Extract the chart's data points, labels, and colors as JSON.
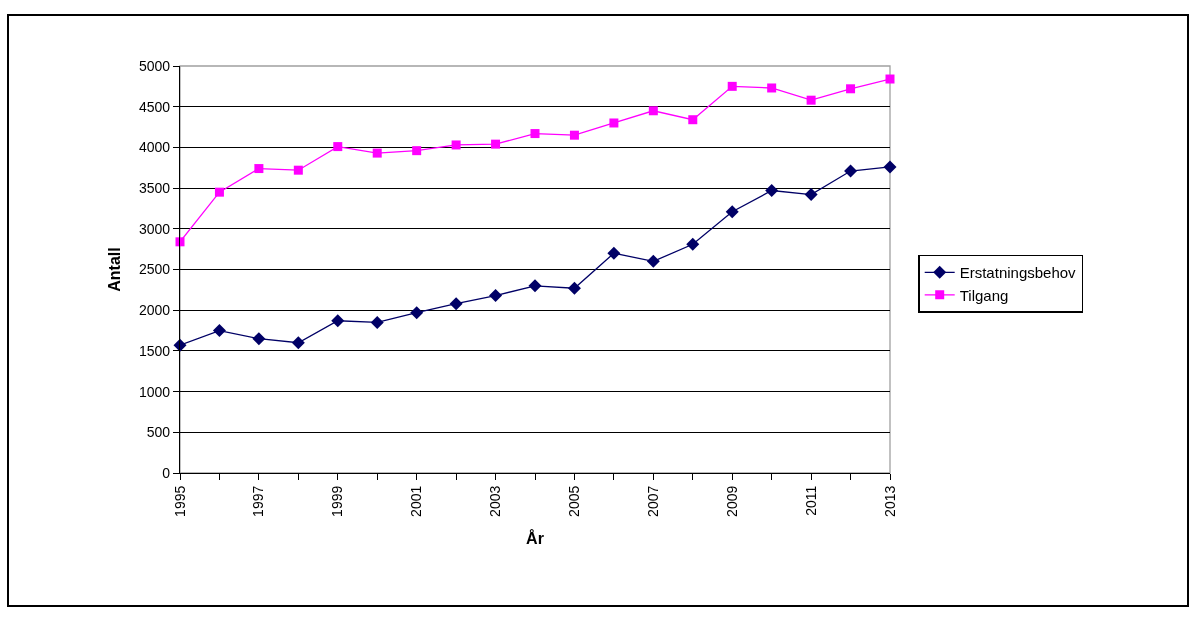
{
  "chart_data": {
    "type": "line",
    "xlabel": "År",
    "ylabel": "Antall",
    "x": [
      1995,
      1996,
      1997,
      1998,
      1999,
      2000,
      2001,
      2002,
      2003,
      2004,
      2005,
      2006,
      2007,
      2008,
      2009,
      2010,
      2011,
      2012,
      2013
    ],
    "series": [
      {
        "name": "Erstatningsbehov",
        "color": "#000066",
        "marker": "diamond",
        "values": [
          1570,
          1750,
          1650,
          1600,
          1870,
          1850,
          1970,
          2080,
          2180,
          2300,
          2270,
          2700,
          2600,
          2810,
          3210,
          3470,
          3420,
          3710,
          3760
        ]
      },
      {
        "name": "Tilgang",
        "color": "#ff00ff",
        "marker": "square",
        "values": [
          2840,
          3450,
          3740,
          3720,
          4010,
          3930,
          3960,
          4030,
          4040,
          4170,
          4150,
          4300,
          4450,
          4340,
          4750,
          4730,
          4580,
          4720,
          4840
        ]
      }
    ],
    "xlim": [
      1995,
      2013
    ],
    "xticks": [
      1995,
      {
        "value": 1996,
        "label": null
      },
      1997,
      {
        "value": 1998,
        "label": null
      },
      1999,
      {
        "value": 2000,
        "label": null
      },
      2001,
      {
        "value": 2002,
        "label": null
      },
      2003,
      {
        "value": 2004,
        "label": null
      },
      2005,
      {
        "value": 2006,
        "label": null
      },
      2007,
      {
        "value": 2008,
        "label": null
      },
      2009,
      {
        "value": 2010,
        "label": null
      },
      2011,
      {
        "value": 2012,
        "label": null
      },
      2013
    ],
    "ylim": [
      0,
      5000
    ],
    "yticks": [
      0,
      500,
      1000,
      1500,
      2000,
      2500,
      3000,
      3500,
      4000,
      4500,
      5000
    ],
    "grid": "y",
    "legend": "right",
    "line_style": "solid"
  }
}
